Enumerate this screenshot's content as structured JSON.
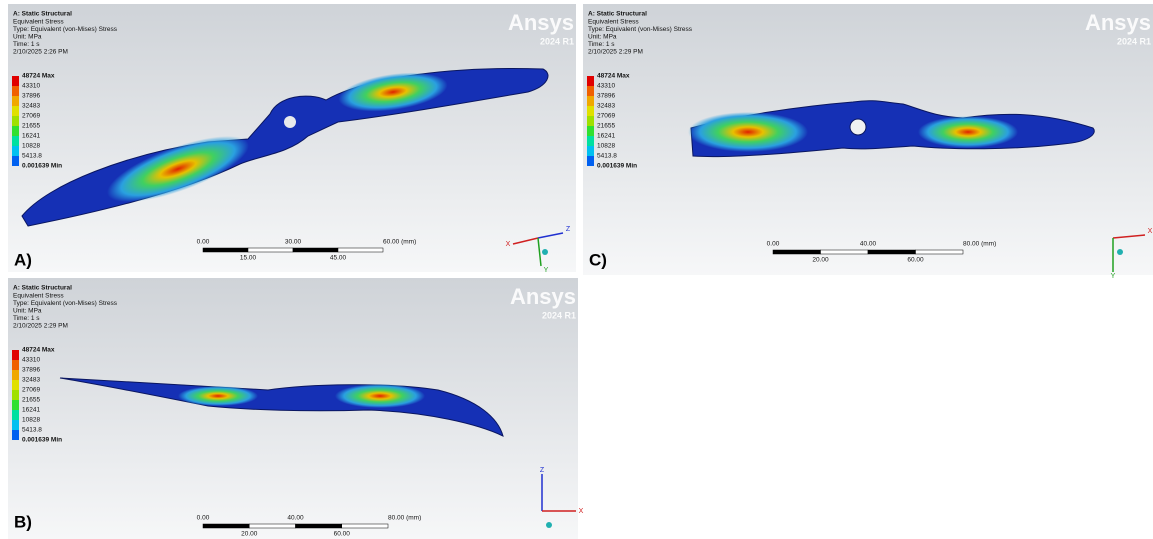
{
  "panels": [
    {
      "label": "A)",
      "header": [
        "A: Static Structural",
        "Equivalent Stress",
        "Type: Equivalent (von-Mises) Stress",
        "Unit: MPa",
        "Time: 1 s",
        "2/10/2025 2:26 PM"
      ],
      "legend": [
        "48724 Max",
        "43310",
        "37896",
        "32483",
        "27069",
        "21655",
        "16241",
        "10828",
        "5413.8",
        "0.001639 Min"
      ],
      "logo": {
        "name": "Ansys",
        "version": "2024 R1"
      },
      "scale": {
        "top": [
          "0.00",
          "30.00",
          "60.00 (mm)"
        ],
        "bottom": [
          "15.00",
          "45.00"
        ]
      },
      "triad": [
        "X",
        "Z",
        "Y"
      ]
    },
    {
      "label": "C)",
      "header": [
        "A: Static Structural",
        "Equivalent Stress",
        "Type: Equivalent (von-Mises) Stress",
        "Unit: MPa",
        "Time: 1 s",
        "2/10/2025 2:29 PM"
      ],
      "legend": [
        "48724 Max",
        "43310",
        "37896",
        "32483",
        "27069",
        "21655",
        "16241",
        "10828",
        "5413.8",
        "0.001639 Min"
      ],
      "logo": {
        "name": "Ansys",
        "version": "2024 R1"
      },
      "scale": {
        "top": [
          "0.00",
          "40.00",
          "80.00 (mm)"
        ],
        "bottom": [
          "20.00",
          "60.00"
        ]
      },
      "triad": [
        "X",
        "Y"
      ]
    },
    {
      "label": "B)",
      "header": [
        "A: Static Structural",
        "Equivalent Stress",
        "Type: Equivalent (von-Mises) Stress",
        "Unit: MPa",
        "Time: 1 s",
        "2/10/2025 2:29 PM"
      ],
      "legend": [
        "48724 Max",
        "43310",
        "37896",
        "32483",
        "27069",
        "21655",
        "16241",
        "10828",
        "5413.8",
        "0.001639 Min"
      ],
      "logo": {
        "name": "Ansys",
        "version": "2024 R1"
      },
      "scale": {
        "top": [
          "0.00",
          "40.00",
          "80.00 (mm)"
        ],
        "bottom": [
          "20.00",
          "60.00"
        ]
      },
      "triad": [
        "Z",
        "X"
      ]
    }
  ]
}
